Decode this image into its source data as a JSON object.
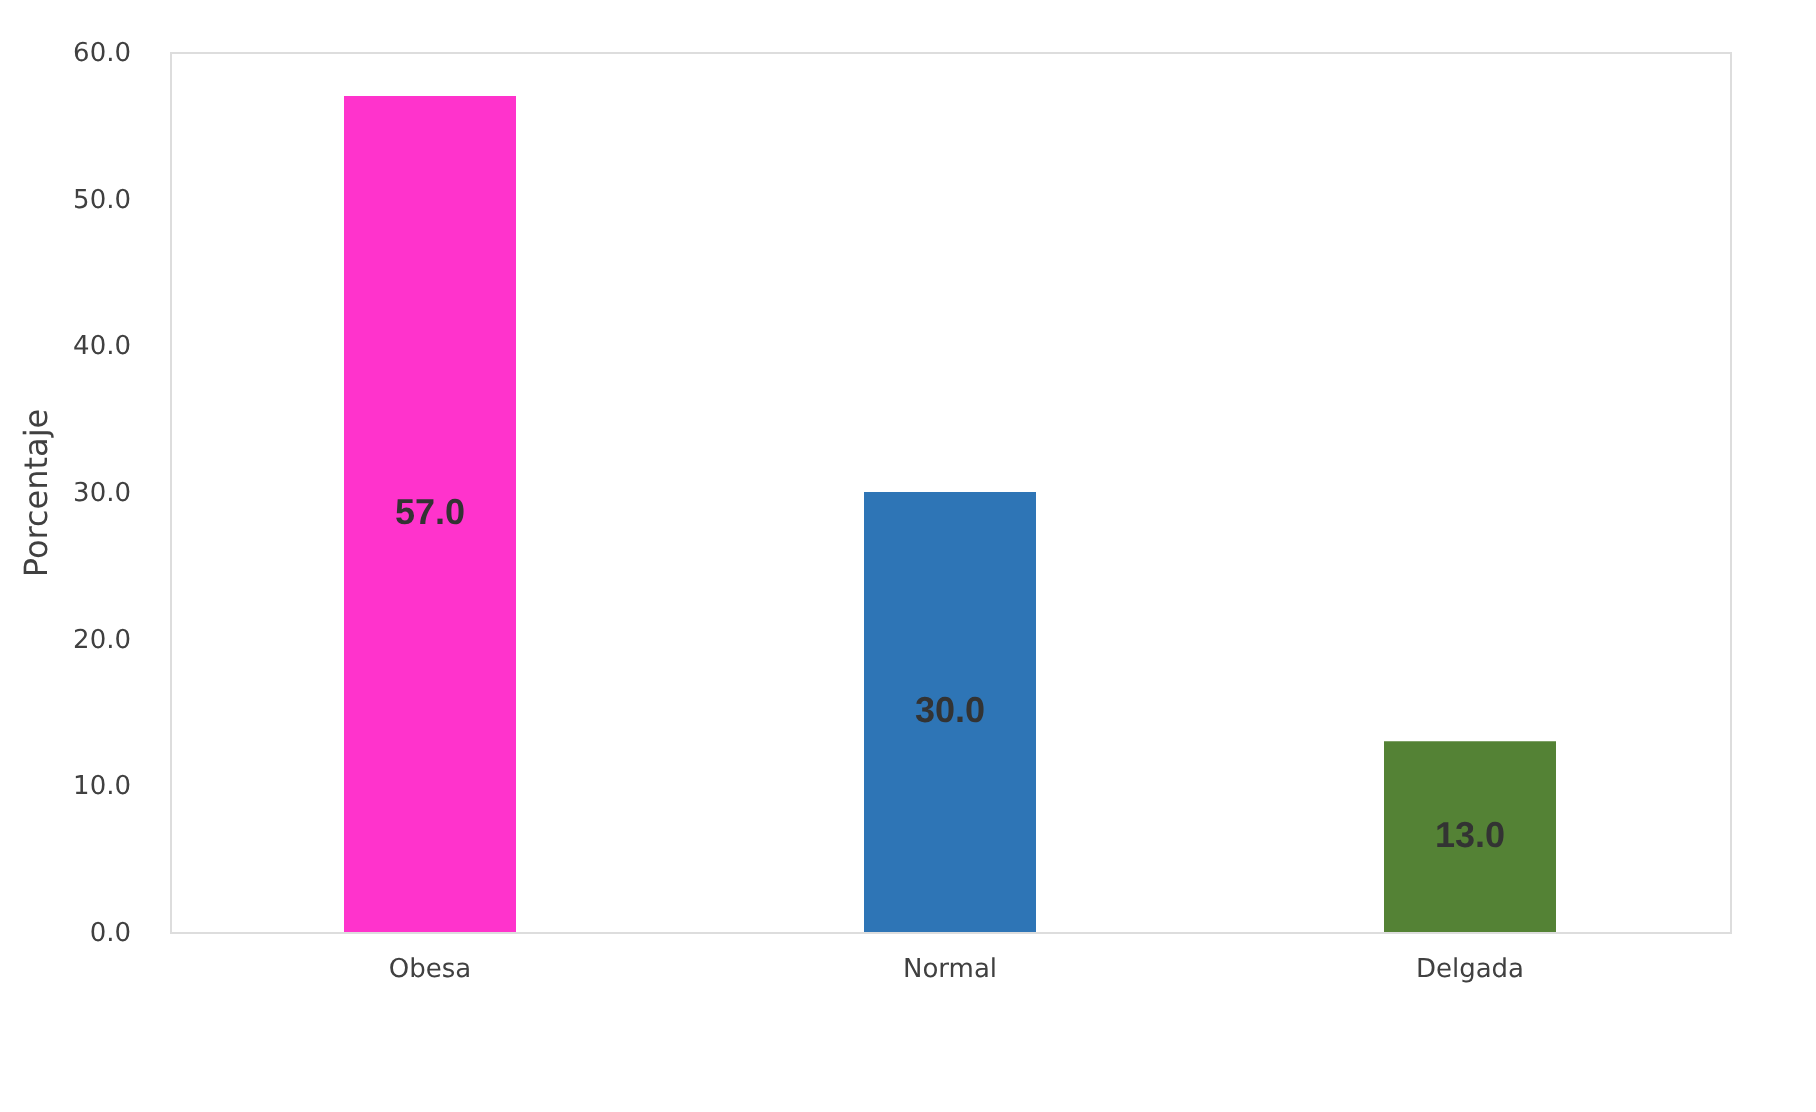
{
  "chart_data": {
    "type": "bar",
    "ylabel": "Porcentaje",
    "categories": [
      "Obesa",
      "Normal",
      "Delgada"
    ],
    "values": [
      57.0,
      30.0,
      13.0
    ],
    "colors": [
      "#ff33cc",
      "#2e75b6",
      "#548235"
    ],
    "value_labels": [
      "57.0",
      "30.0",
      "13.0"
    ],
    "ylim": [
      0,
      60
    ],
    "yticks": [
      {
        "value": 0,
        "label": "0.0"
      },
      {
        "value": 10,
        "label": "10.0"
      },
      {
        "value": 20,
        "label": "20.0"
      },
      {
        "value": 30,
        "label": "30.0"
      },
      {
        "value": 40,
        "label": "40.0"
      },
      {
        "value": 50,
        "label": "50.0"
      },
      {
        "value": 60,
        "label": "60.0"
      }
    ],
    "grid": false
  }
}
